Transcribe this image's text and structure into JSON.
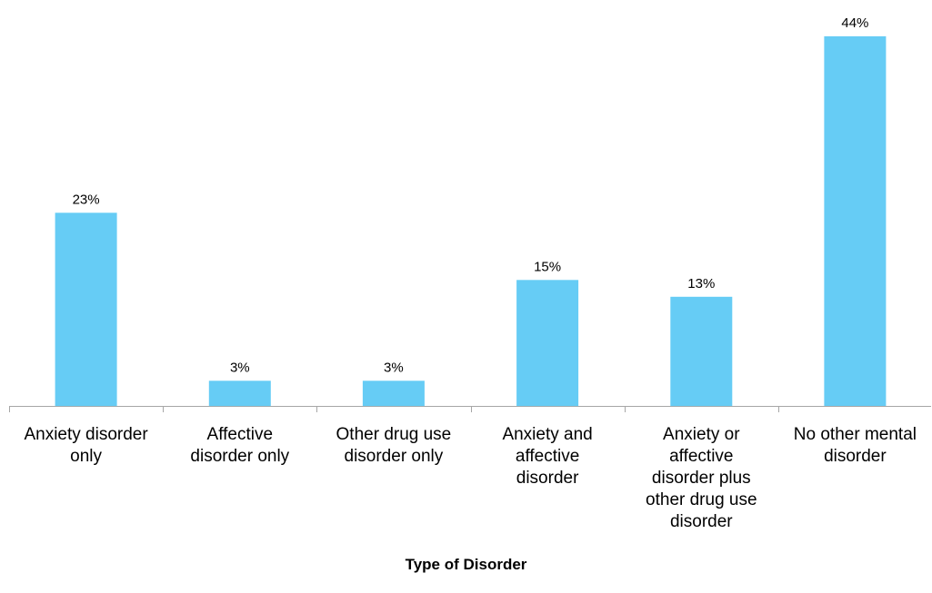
{
  "chart_data": {
    "type": "bar",
    "categories": [
      "Anxiety disorder only",
      "Affective disorder only",
      "Other drug use disorder only",
      "Anxiety and affective disorder",
      "Anxiety or affective disorder plus other drug use disorder",
      "No other mental disorder"
    ],
    "category_lines": [
      [
        "Anxiety disorder",
        "only"
      ],
      [
        "Affective",
        "disorder only"
      ],
      [
        "Other drug use",
        "disorder only"
      ],
      [
        "Anxiety and",
        "affective",
        "disorder"
      ],
      [
        "Anxiety or",
        "affective",
        "disorder plus",
        "other drug use",
        "disorder"
      ],
      [
        "No other mental",
        "disorder"
      ]
    ],
    "values": [
      23,
      3,
      3,
      15,
      13,
      44
    ],
    "data_labels": [
      "23%",
      "3%",
      "3%",
      "15%",
      "13%",
      "44%"
    ],
    "xlabel": "Type of Disorder",
    "ylim": [
      0,
      44
    ],
    "grid": false,
    "bar_color": "#66CCF5",
    "axis_color": "#A6A6A6"
  }
}
